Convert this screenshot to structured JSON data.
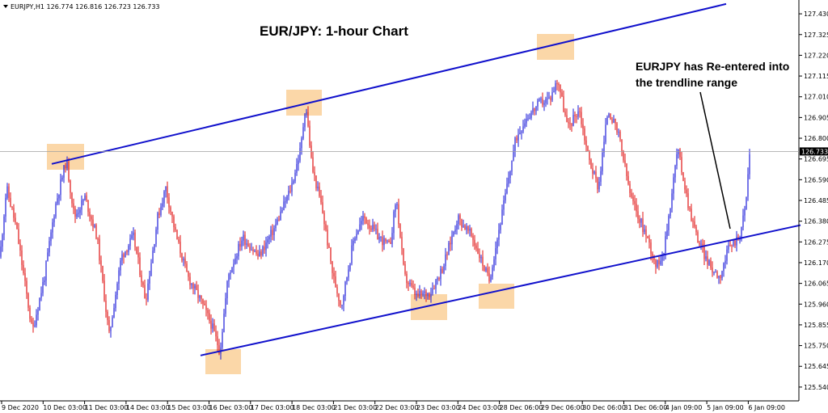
{
  "chart_data": {
    "type": "candlestick",
    "title": "EUR/JPY: 1-hour Chart",
    "symbol_header": "EURJPY,H1  126.774 126.816 126.723 126.733",
    "annotation": [
      "EURJPY has Re-entered into",
      "the trendline range"
    ],
    "current_price_label": "126.733",
    "current_price": 126.733,
    "ylim": [
      125.47,
      127.5
    ],
    "y_ticks": [
      "127.430",
      "127.325",
      "127.220",
      "127.115",
      "127.010",
      "126.905",
      "126.800",
      "126.695",
      "126.590",
      "126.485",
      "126.380",
      "126.275",
      "126.170",
      "126.065",
      "125.960",
      "125.855",
      "125.750",
      "125.645",
      "125.540"
    ],
    "x_ticks": [
      "9 Dec 2020",
      "10 Dec 03:00",
      "11 Dec 03:00",
      "14 Dec 03:00",
      "15 Dec 03:00",
      "16 Dec 03:00",
      "17 Dec 03:00",
      "18 Dec 03:00",
      "21 Dec 03:00",
      "22 Dec 03:00",
      "23 Dec 03:00",
      "24 Dec 03:00",
      "28 Dec 06:00",
      "29 Dec 06:00",
      "30 Dec 06:00",
      "31 Dec 06:00",
      "4 Jan 09:00",
      "5 Jan 09:00",
      "6 Jan 09:00"
    ],
    "path": [
      [
        0,
        126.2
      ],
      [
        8,
        126.55
      ],
      [
        20,
        126.35
      ],
      [
        40,
        125.82
      ],
      [
        55,
        126.1
      ],
      [
        68,
        126.45
      ],
      [
        82,
        126.69
      ],
      [
        92,
        126.4
      ],
      [
        105,
        126.5
      ],
      [
        120,
        126.3
      ],
      [
        135,
        125.8
      ],
      [
        150,
        126.2
      ],
      [
        165,
        126.3
      ],
      [
        180,
        125.98
      ],
      [
        195,
        126.4
      ],
      [
        205,
        126.55
      ],
      [
        218,
        126.3
      ],
      [
        232,
        126.1
      ],
      [
        248,
        125.98
      ],
      [
        262,
        125.85
      ],
      [
        272,
        125.72
      ],
      [
        282,
        126.1
      ],
      [
        300,
        126.3
      ],
      [
        320,
        126.2
      ],
      [
        340,
        126.35
      ],
      [
        360,
        126.55
      ],
      [
        372,
        126.75
      ],
      [
        378,
        126.98
      ],
      [
        386,
        126.65
      ],
      [
        398,
        126.45
      ],
      [
        412,
        126.1
      ],
      [
        422,
        125.95
      ],
      [
        438,
        126.3
      ],
      [
        450,
        126.4
      ],
      [
        468,
        126.3
      ],
      [
        482,
        126.25
      ],
      [
        490,
        126.5
      ],
      [
        500,
        126.1
      ],
      [
        515,
        126.0
      ],
      [
        532,
        126.02
      ],
      [
        548,
        126.15
      ],
      [
        566,
        126.4
      ],
      [
        584,
        126.3
      ],
      [
        605,
        126.08
      ],
      [
        620,
        126.4
      ],
      [
        638,
        126.8
      ],
      [
        650,
        126.9
      ],
      [
        668,
        126.98
      ],
      [
        680,
        127.0
      ],
      [
        690,
        127.1
      ],
      [
        702,
        126.85
      ],
      [
        716,
        126.95
      ],
      [
        728,
        126.7
      ],
      [
        740,
        126.55
      ],
      [
        752,
        126.95
      ],
      [
        766,
        126.8
      ],
      [
        780,
        126.5
      ],
      [
        790,
        126.4
      ],
      [
        800,
        126.3
      ],
      [
        812,
        126.15
      ],
      [
        822,
        126.25
      ],
      [
        838,
        126.75
      ],
      [
        852,
        126.45
      ],
      [
        862,
        126.3
      ],
      [
        870,
        126.22
      ],
      [
        878,
        126.15
      ],
      [
        890,
        126.1
      ],
      [
        902,
        126.25
      ],
      [
        914,
        126.3
      ],
      [
        922,
        126.45
      ],
      [
        928,
        126.78
      ]
    ],
    "upper_trendline": [
      [
        64,
        126.67
      ],
      [
        898,
        127.48
      ]
    ],
    "lower_trendline": [
      [
        248,
        125.7
      ],
      [
        990,
        126.36
      ]
    ],
    "highlight_boxes": [
      [
        58,
        178,
        104,
        210
      ],
      [
        354,
        111,
        398,
        143
      ],
      [
        664,
        42,
        710,
        74
      ],
      [
        254,
        432,
        298,
        463
      ],
      [
        508,
        364,
        553,
        396
      ],
      [
        592,
        351,
        636,
        382
      ]
    ],
    "colors": {
      "bull": "#1a1ad8",
      "bear": "#e01010",
      "trendline": "#1111cc",
      "box": "#fbd7a8",
      "price_line": "#a0a0a0",
      "price_tag": "#000000"
    }
  }
}
